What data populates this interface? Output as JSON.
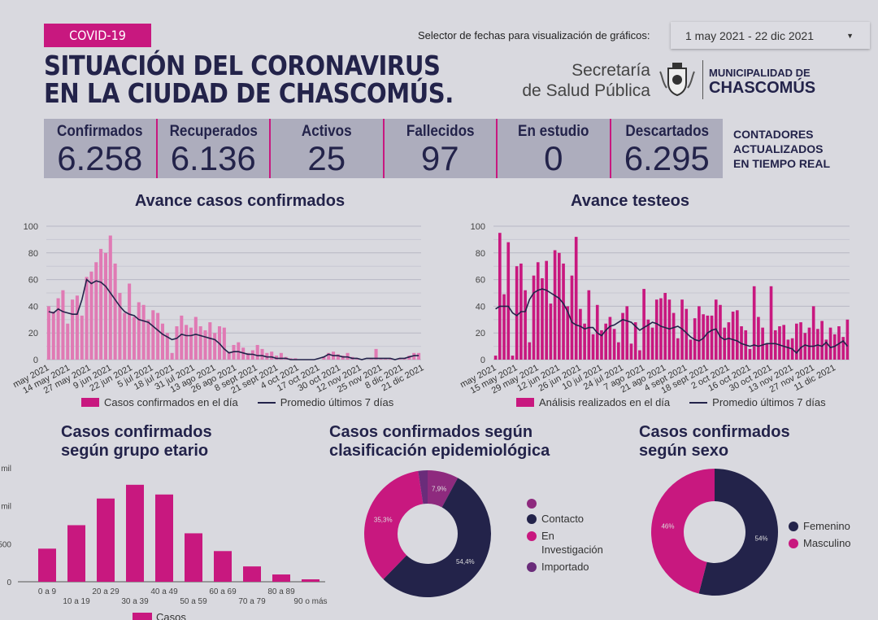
{
  "header": {
    "badge": "COVID-19",
    "title_line1": "SITUACIÓN DEL CORONAVIRUS",
    "title_line2": "EN LA CIUDAD DE CHASCOMÚS.",
    "selector_label": "Selector de fechas para visualización de gráficos:",
    "selector_value": "1 may 2021 - 22 dic 2021",
    "secretaria_line1": "Secretaría",
    "secretaria_line2": "de Salud Pública",
    "muni_line1": "MUNICIPALIDAD DE",
    "muni_line2": "CHASCOMÚS"
  },
  "kpis": [
    {
      "label": "Confirmados",
      "value": "6.258"
    },
    {
      "label": "Recuperados",
      "value": "6.136"
    },
    {
      "label": "Activos",
      "value": "25"
    },
    {
      "label": "Fallecidos",
      "value": "97"
    },
    {
      "label": "En estudio",
      "value": "0"
    },
    {
      "label": "Descartados",
      "value": "6.295"
    }
  ],
  "counters_note": [
    "CONTADORES",
    "ACTUALIZADOS",
    "EN TIEMPO REAL"
  ],
  "colors": {
    "pink": "#c8187f",
    "light_pink": "#e07ab4",
    "navy": "#23234a",
    "purple": "#8e2a7e",
    "violet": "#6a2c7a"
  },
  "chart_data": [
    {
      "type": "bar+line",
      "title": "Avance casos confirmados",
      "xlim": [
        "2021-05-01",
        "2021-12-22"
      ],
      "ylim": [
        0,
        100
      ],
      "yticks": [
        "0",
        "20",
        "40",
        "60",
        "80",
        "100"
      ],
      "grid": true,
      "xticks": [
        "may 2021",
        "14 may 2021",
        "27 may 2021",
        "9 jun 2021",
        "22 jun 2021",
        "5 jul 2021",
        "18 jul 2021",
        "31 jul 2021",
        "13 ago 2021",
        "26 ago 2021",
        "8 sept 2021",
        "21 sept 2021",
        "4 oct 2021",
        "17 oct 2021",
        "30 oct 2021",
        "12 nov 2021",
        "25 nov 2021",
        "8 dic 2021",
        "21 dic 2021"
      ],
      "series": [
        {
          "name": "Casos confirmados en el día",
          "type": "bar",
          "values": [
            40,
            36,
            46,
            52,
            27,
            45,
            48,
            33,
            62,
            66,
            73,
            83,
            80,
            93,
            72,
            50,
            35,
            57,
            32,
            43,
            41,
            30,
            37,
            35,
            27,
            20,
            5,
            25,
            33,
            26,
            24,
            32,
            25,
            22,
            28,
            20,
            25,
            24,
            6,
            11,
            13,
            9,
            5,
            7,
            11,
            8,
            5,
            6,
            3,
            5,
            2,
            1,
            1,
            0,
            0,
            0,
            0,
            0,
            2,
            5,
            6,
            4,
            3,
            5,
            2,
            1,
            0,
            0,
            1,
            8,
            1,
            1,
            1,
            0,
            1,
            1,
            3,
            5,
            5
          ]
        },
        {
          "name": "Promedio últimos 7 días",
          "type": "line",
          "values": [
            36,
            35,
            38,
            36,
            35,
            34,
            34,
            45,
            60,
            57,
            59,
            58,
            55,
            50,
            45,
            40,
            36,
            34,
            33,
            30,
            29,
            28,
            25,
            22,
            19,
            17,
            15,
            16,
            19,
            18,
            18,
            19,
            18,
            17,
            16,
            15,
            12,
            8,
            5,
            6,
            6,
            5,
            4,
            4,
            3,
            3,
            2,
            2,
            1,
            1,
            1,
            0,
            0,
            0,
            0,
            0,
            0,
            1,
            2,
            4,
            3,
            3,
            2,
            2,
            1,
            1,
            0,
            1,
            1,
            1,
            1,
            1,
            1,
            0,
            1,
            1,
            2,
            3,
            3
          ]
        }
      ]
    },
    {
      "type": "bar+line",
      "title": "Avance testeos",
      "xlim": [
        "2021-05-01",
        "2021-12-22"
      ],
      "ylim": [
        0,
        100
      ],
      "yticks": [
        "0",
        "20",
        "40",
        "60",
        "80",
        "100"
      ],
      "grid": true,
      "xticks": [
        "may 2021",
        "15 may 2021",
        "29 may 2021",
        "12 jun 2021",
        "26 jun 2021",
        "10 jul 2021",
        "24 jul 2021",
        "7 ago 2021",
        "21 ago 2021",
        "4 sept 2021",
        "18 sept 2021",
        "2 oct 2021",
        "16 oct 2021",
        "30 oct 2021",
        "13 nov 2021",
        "27 nov 2021",
        "11 dic 2021"
      ],
      "series": [
        {
          "name": "Análisis realizados en el día",
          "type": "bar",
          "values": [
            3,
            95,
            49,
            88,
            3,
            70,
            72,
            52,
            13,
            63,
            73,
            61,
            74,
            42,
            82,
            80,
            72,
            40,
            63,
            92,
            38,
            27,
            52,
            19,
            41,
            22,
            27,
            32,
            23,
            13,
            35,
            40,
            12,
            28,
            7,
            53,
            30,
            24,
            45,
            46,
            50,
            45,
            35,
            16,
            45,
            38,
            15,
            31,
            40,
            34,
            33,
            33,
            45,
            41,
            24,
            28,
            36,
            37,
            25,
            22,
            8,
            55,
            32,
            24,
            12,
            55,
            22,
            25,
            26,
            15,
            16,
            27,
            28,
            20,
            24,
            40,
            23,
            29,
            15,
            24,
            19,
            25,
            17,
            30
          ]
        },
        {
          "name": "Promedio últimos 7 días",
          "type": "line",
          "values": [
            38,
            40,
            40,
            40,
            35,
            33,
            36,
            36,
            45,
            50,
            52,
            53,
            52,
            50,
            48,
            46,
            42,
            36,
            28,
            26,
            25,
            23,
            24,
            24,
            20,
            18,
            22,
            25,
            26,
            28,
            30,
            29,
            28,
            25,
            22,
            24,
            26,
            28,
            27,
            25,
            24,
            23,
            24,
            25,
            23,
            20,
            17,
            15,
            14,
            16,
            20,
            22,
            23,
            17,
            15,
            16,
            15,
            14,
            12,
            11,
            10,
            11,
            10,
            11,
            12,
            12,
            12,
            11,
            10,
            9,
            8,
            5,
            9,
            11,
            10,
            10,
            11,
            10,
            13,
            9,
            10,
            12,
            14,
            10
          ]
        }
      ]
    },
    {
      "type": "bar",
      "title": "Casos confirmados según grupo etario",
      "categories": [
        "0 a 9",
        "10 a 19",
        "20 a 29",
        "30 a 39",
        "40 a 49",
        "50 a 59",
        "60 a 69",
        "70 a 79",
        "80 a 89",
        "90 o más"
      ],
      "values": [
        436,
        745,
        1096,
        1277,
        1149,
        638,
        404,
        202,
        96,
        32
      ],
      "ylim": [
        0,
        1500
      ],
      "yticks": [
        "0",
        "500",
        "mil",
        "mil"
      ],
      "legend": "Casos"
    },
    {
      "type": "pie",
      "title": "Casos confirmados según clasificación epidemiológica",
      "slices": [
        {
          "label": "",
          "value": 7.9,
          "text": "7,9%",
          "color": "#8e2a7e"
        },
        {
          "label": "Contacto",
          "value": 54.4,
          "text": "54,4%",
          "color": "#23234a"
        },
        {
          "label": "En Investigación",
          "value": 35.3,
          "text": "35,3%",
          "color": "#c8187f"
        },
        {
          "label": "Importado",
          "value": 2.4,
          "text": "",
          "color": "#6a2c7a"
        }
      ]
    },
    {
      "type": "pie",
      "title": "Casos confirmados según sexo",
      "slices": [
        {
          "label": "Femenino",
          "value": 54,
          "text": "54%",
          "color": "#23234a"
        },
        {
          "label": "Masculino",
          "value": 46,
          "text": "46%",
          "color": "#c8187f"
        }
      ]
    }
  ]
}
